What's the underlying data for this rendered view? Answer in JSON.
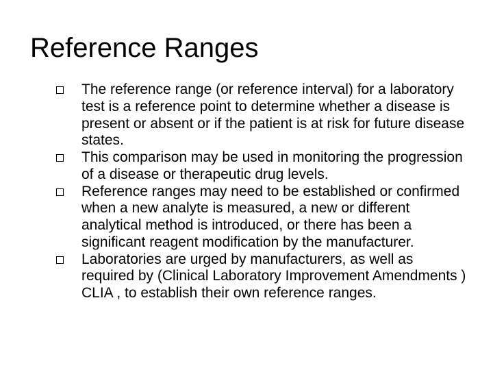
{
  "slide": {
    "title": "Reference Ranges",
    "bullets": [
      "The reference range (or reference interval) for a laboratory test is a reference point to determine whether a disease is present or absent or if the patient is at risk for future disease states.",
      "This comparison may be used in monitoring the progression of a disease or therapeutic drug levels.",
      "Reference ranges may need to be established or confirmed when a new analyte is measured, a new or different analytical method is introduced, or there has been a significant reagent modification by the manufacturer.",
      "Laboratories are urged by manufacturers, as well as required by (Clinical Laboratory Improvement Amendments ) CLIA , to establish their own reference ranges."
    ],
    "styling": {
      "background_color": "#ffffff",
      "text_color": "#000000",
      "title_fontsize": 40,
      "body_fontsize": 21,
      "bullet_marker": "hollow-square",
      "bullet_marker_size": 11,
      "bullet_marker_border_color": "#000000",
      "font_family": "Arial"
    }
  }
}
